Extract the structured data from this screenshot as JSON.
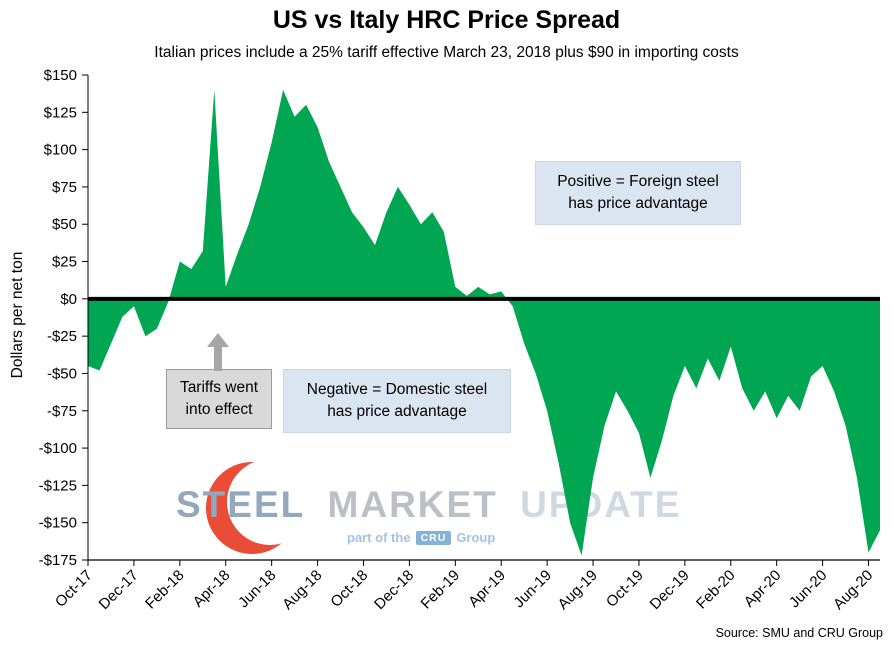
{
  "page": {
    "title": "US vs Italy HRC Price Spread",
    "subtitle": "Italian prices include a 25% tariff effective March 23, 2018 plus $90 in importing costs",
    "y_axis_title": "Dollars per net ton",
    "source": "Source: SMU and CRU Group"
  },
  "annotations": {
    "positive_line1": "Positive = Foreign steel",
    "positive_line2": "has price advantage",
    "negative_line1": "Negative = Domestic steel",
    "negative_line2": "has price advantage",
    "tariffs_line1": "Tariffs went",
    "tariffs_line2": "into effect",
    "positive_bg": "#dbe5f1",
    "negative_bg": "#dbe5f1",
    "tariffs_bg": "#d9d9d9",
    "arrow_color": "#a6a6a6"
  },
  "watermark": {
    "word1": "STEEL",
    "word2": "MARKET",
    "word3": "UPDATE",
    "tagline_pre": "part of the",
    "tagline_logo": "CRU",
    "tagline_post": "Group",
    "colors": {
      "logo_red": "#e8432d",
      "steel": "#8da4ba",
      "market": "#b7bdc3",
      "update": "#ccd8e3",
      "tagline": "#9cc1e1",
      "cru_badge_bg": "#7fafd6",
      "cru_badge_text": "#ffffff"
    }
  },
  "chart_data": {
    "type": "area",
    "title": "US vs Italy HRC Price Spread",
    "xlabel": "",
    "ylabel": "Dollars per net ton",
    "ylim": [
      -175,
      150
    ],
    "y_tick_step": 25,
    "grid": false,
    "legend": false,
    "x_unit": "semi-monthly points from Oct-17",
    "points_per_tick": 4,
    "y_tick_labels": [
      "$150",
      "$125",
      "$100",
      "$75",
      "$50",
      "$25",
      "$0",
      "-$25",
      "-$50",
      "-$75",
      "-$100",
      "-$125",
      "-$150",
      "-$175"
    ],
    "x_tick_labels": [
      "Oct-17",
      "Dec-17",
      "Feb-18",
      "Apr-18",
      "Jun-18",
      "Aug-18",
      "Oct-18",
      "Dec-18",
      "Feb-19",
      "Apr-19",
      "Jun-19",
      "Aug-19",
      "Oct-19",
      "Dec-19",
      "Feb-20",
      "Apr-20",
      "Jun-20",
      "Aug-20"
    ],
    "fill_color": "#00a651",
    "zero_line_color": "#000000",
    "values": [
      -45,
      -48,
      -30,
      -12,
      -5,
      -25,
      -20,
      -2,
      25,
      20,
      32,
      140,
      8,
      30,
      50,
      75,
      105,
      140,
      122,
      130,
      115,
      92,
      75,
      58,
      48,
      36,
      58,
      75,
      63,
      50,
      58,
      45,
      8,
      2,
      8,
      3,
      5,
      -5,
      -30,
      -50,
      -75,
      -110,
      -150,
      -172,
      -120,
      -85,
      -62,
      -75,
      -90,
      -120,
      -95,
      -65,
      -45,
      -60,
      -40,
      -55,
      -32,
      -60,
      -75,
      -62,
      -80,
      -65,
      -75,
      -52,
      -45,
      -62,
      -85,
      -120,
      -170,
      -155
    ]
  }
}
